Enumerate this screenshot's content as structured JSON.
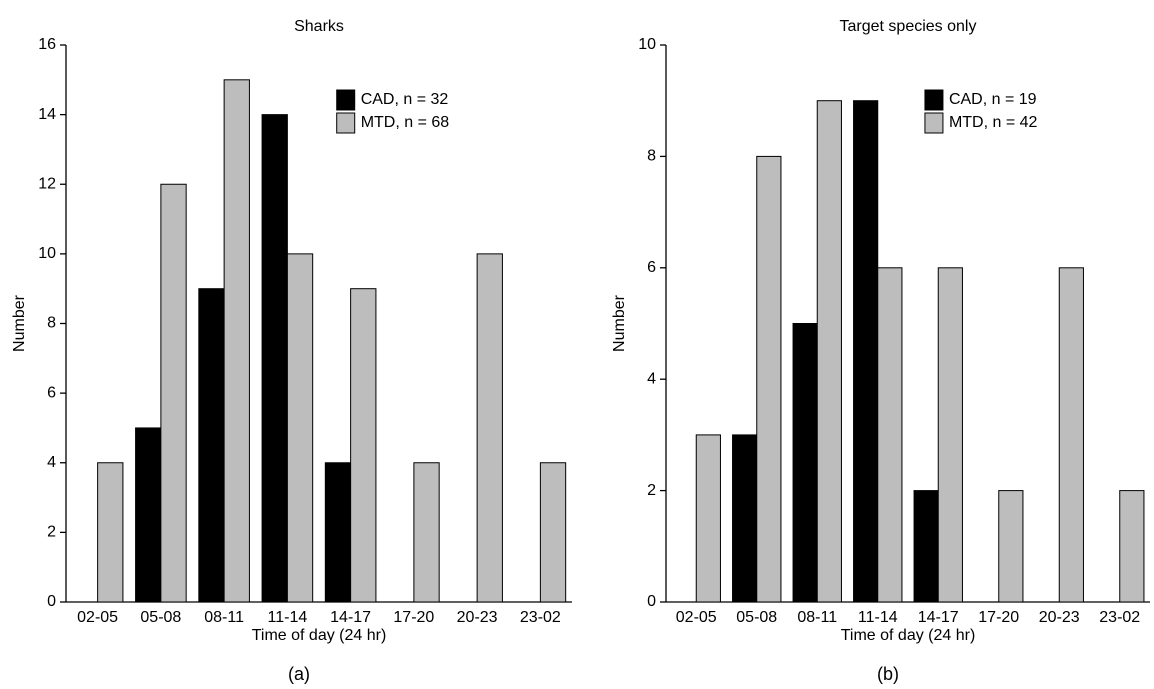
{
  "chart_data": [
    {
      "type": "bar",
      "title": "Sharks",
      "x_label": "Time of day (24 hr)",
      "y_label": "Number",
      "panel_label": "(a)",
      "categories": [
        "02-05",
        "05-08",
        "08-11",
        "11-14",
        "14-17",
        "17-20",
        "20-23",
        "23-02"
      ],
      "series": [
        {
          "name": "CAD, n = 32",
          "color": "#000000",
          "values": [
            0,
            5,
            9,
            14,
            4,
            0,
            0,
            0
          ]
        },
        {
          "name": "MTD, n = 68",
          "color": "#bdbdbd",
          "values": [
            4,
            12,
            15,
            10,
            9,
            4,
            10,
            4
          ]
        }
      ],
      "ylim": [
        0,
        16
      ],
      "yticks": [
        0,
        2,
        4,
        6,
        8,
        10,
        12,
        14,
        16
      ],
      "legend": "upper right",
      "grid": false
    },
    {
      "type": "bar",
      "title": "Target species only",
      "x_label": "Time of day (24 hr)",
      "y_label": "Number",
      "panel_label": "(b)",
      "categories": [
        "02-05",
        "05-08",
        "08-11",
        "11-14",
        "14-17",
        "17-20",
        "20-23",
        "23-02"
      ],
      "series": [
        {
          "name": "CAD, n = 19",
          "color": "#000000",
          "values": [
            0,
            3,
            5,
            9,
            2,
            0,
            0,
            0
          ]
        },
        {
          "name": "MTD, n = 42",
          "color": "#bdbdbd",
          "values": [
            3,
            8,
            9,
            6,
            6,
            2,
            6,
            2
          ]
        }
      ],
      "ylim": [
        0,
        10
      ],
      "yticks": [
        0,
        2,
        4,
        6,
        8,
        10
      ],
      "legend": "upper right",
      "grid": false
    }
  ]
}
